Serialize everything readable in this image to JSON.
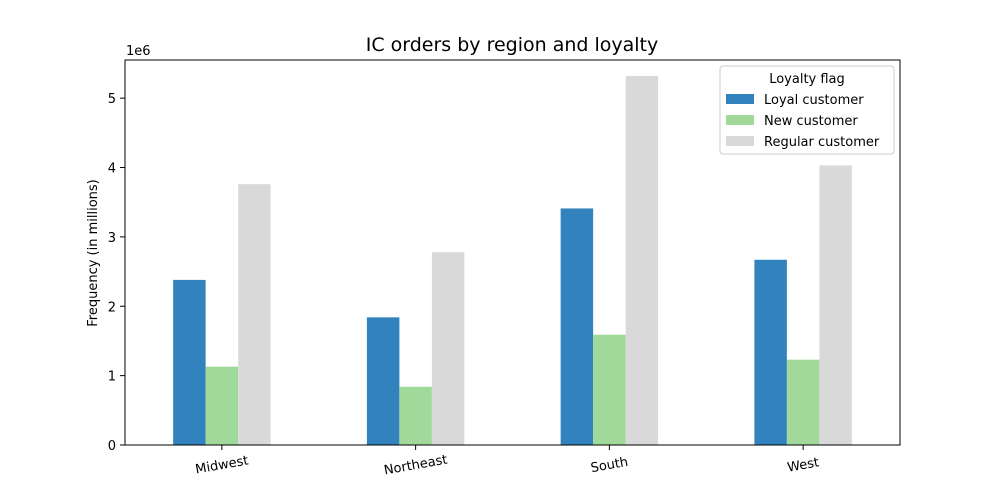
{
  "chart_data": {
    "type": "bar",
    "title": "IC orders by region and loyalty",
    "xlabel": "",
    "ylabel": "Frequency (in millions)",
    "y_offset_label": "1e6",
    "categories": [
      "Midwest",
      "Northeast",
      "South",
      "West"
    ],
    "series": [
      {
        "name": "Loyal customer",
        "color": "#3182bd",
        "values": [
          2380000,
          1840000,
          3410000,
          2670000
        ]
      },
      {
        "name": "New customer",
        "color": "#a1d99b",
        "values": [
          1130000,
          840000,
          1590000,
          1230000
        ]
      },
      {
        "name": "Regular customer",
        "color": "#d9d9d9",
        "values": [
          3760000,
          2780000,
          5320000,
          4030000
        ]
      }
    ],
    "ylim": [
      0,
      5550000
    ],
    "yticks": [
      0,
      1000000,
      2000000,
      3000000,
      4000000,
      5000000
    ],
    "ytick_labels": [
      "0",
      "1",
      "2",
      "3",
      "4",
      "5"
    ],
    "legend": {
      "title": "Loyalty flag",
      "position": "top-right"
    },
    "grid": false
  }
}
